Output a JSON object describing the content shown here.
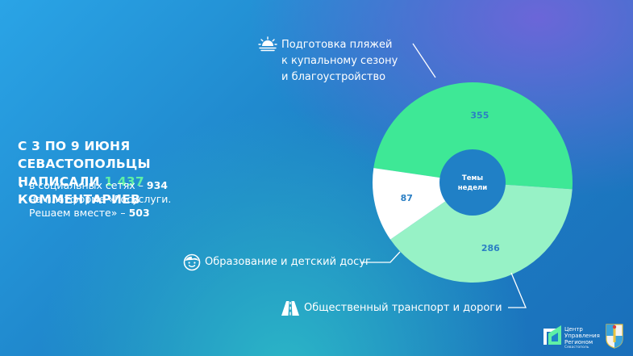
{
  "headline": {
    "line1": "С 3 ПО 9 ИЮНЯ СЕВАСТОПОЛЬЦЫ",
    "line2_prefix": "НАПИСАЛИ ",
    "line2_accent": "1 437",
    "line2_suffix": " КОММЕНТАРИЕВ"
  },
  "bullets": [
    {
      "text": "в социальных сетях – ",
      "value": "934"
    },
    {
      "line1": "на платформе «Госуслуги.",
      "line2": "Решаем вместе» – ",
      "value": "503"
    }
  ],
  "center_label": {
    "line1": "Темы",
    "line2": "недели"
  },
  "category_labels": {
    "beaches": [
      "Подготовка пляжей",
      "к купальному сезону",
      "и благоустройство"
    ],
    "education": "Образование и детский досуг",
    "transport": "Общественный транспорт и дороги"
  },
  "icons": {
    "beaches": "sun-over-water-icon",
    "education": "child-face-icon",
    "transport": "road-icon"
  },
  "logo": {
    "line1": "Центр",
    "line2": "Управления",
    "line3": "Регионом",
    "line4": "Севастополь"
  },
  "chart_data": {
    "type": "pie",
    "categories": [
      "Подготовка пляжей к купальному сезону и благоустройство",
      "Общественный транспорт и дороги",
      "Образование и детский досуг"
    ],
    "values": [
      355,
      286,
      87
    ],
    "colors": [
      "#3ee896",
      "#97f2c6",
      "#ffffff"
    ],
    "label_colors": [
      "#2b7fc4",
      "#2b7fc4",
      "#2b7fc4"
    ],
    "hole_color": "#2080c6"
  }
}
